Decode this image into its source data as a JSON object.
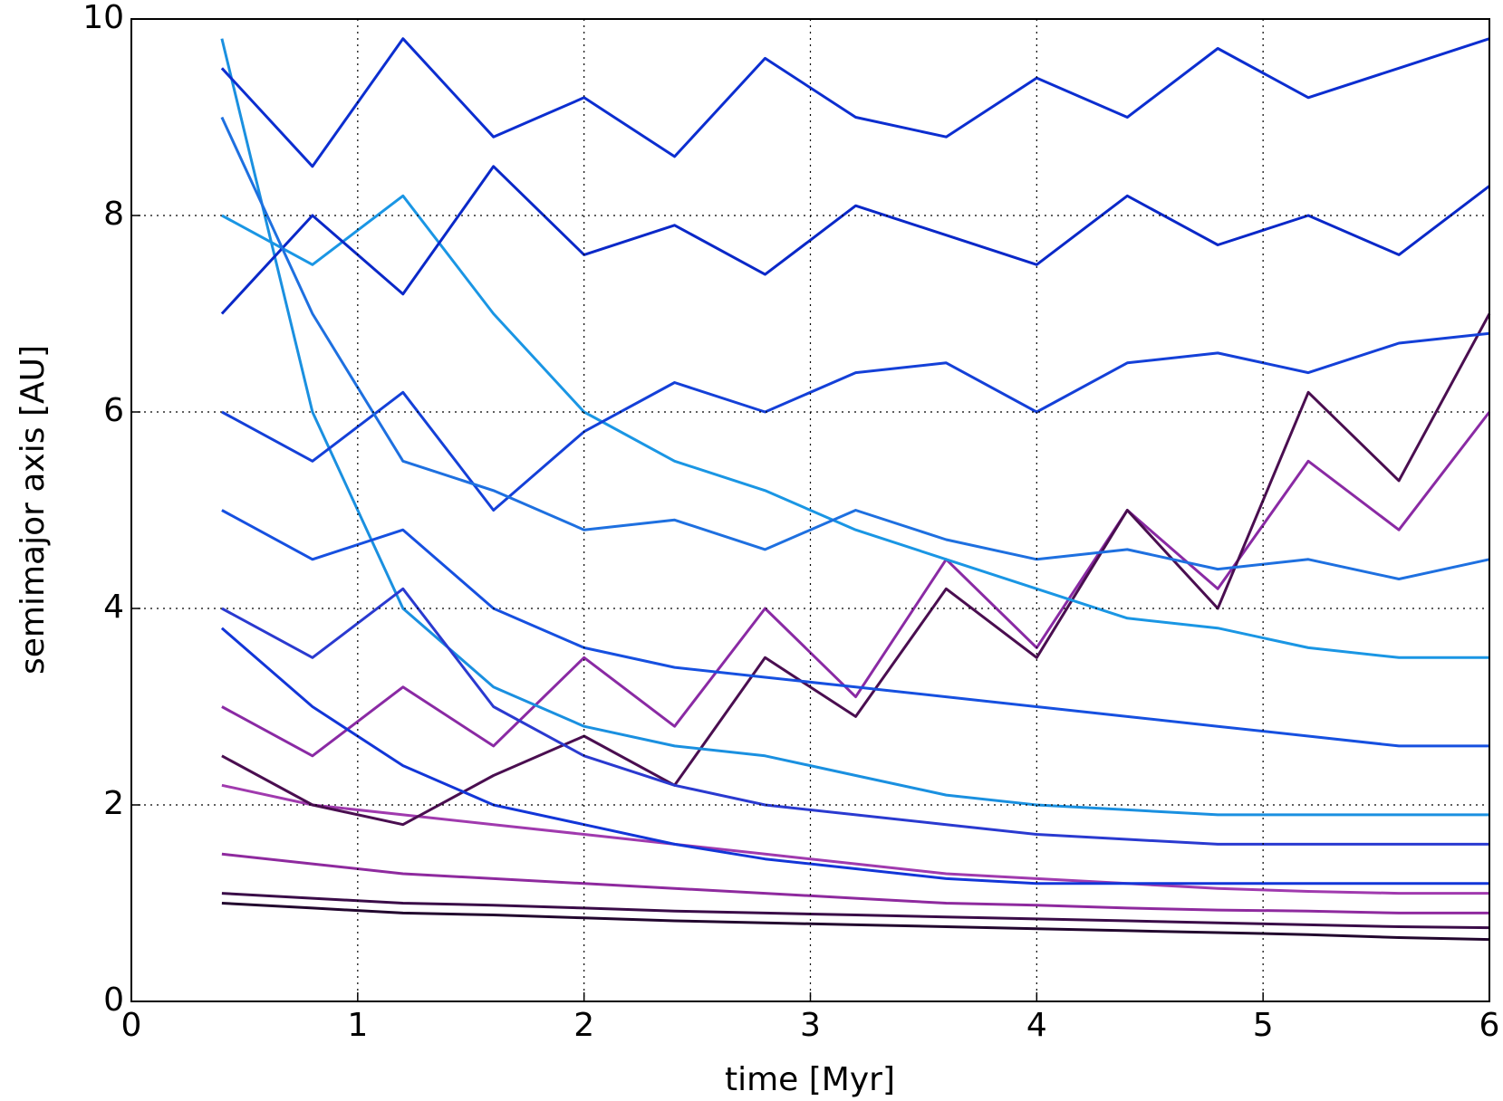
{
  "chart_data": {
    "type": "line",
    "xlabel": "time [Myr]",
    "ylabel": "semimajor axis [AU]",
    "x": [
      0.4,
      0.8,
      1.2,
      1.6,
      2.0,
      2.4,
      2.8,
      3.2,
      3.6,
      4.0,
      4.4,
      4.8,
      5.2,
      5.6,
      6.0
    ],
    "xlim": [
      0,
      6
    ],
    "ylim": [
      0,
      10
    ],
    "xticks": [
      0,
      1,
      2,
      3,
      4,
      5,
      6
    ],
    "yticks": [
      0,
      2,
      4,
      6,
      8,
      10
    ],
    "grid": true,
    "series": [
      {
        "color": "#22062e",
        "values": [
          1.0,
          0.95,
          0.9,
          0.88,
          0.85,
          0.82,
          0.8,
          0.78,
          0.76,
          0.74,
          0.72,
          0.7,
          0.68,
          0.65,
          0.63
        ]
      },
      {
        "color": "#3a0c48",
        "values": [
          1.1,
          1.05,
          1.0,
          0.98,
          0.95,
          0.92,
          0.9,
          0.88,
          0.86,
          0.84,
          0.82,
          0.8,
          0.78,
          0.76,
          0.75
        ]
      },
      {
        "color": "#8e2a9e",
        "values": [
          1.5,
          1.4,
          1.3,
          1.25,
          1.2,
          1.15,
          1.1,
          1.05,
          1.0,
          0.98,
          0.95,
          0.93,
          0.92,
          0.9,
          0.9
        ]
      },
      {
        "color": "#a03aae",
        "values": [
          2.2,
          2.0,
          1.9,
          1.8,
          1.7,
          1.6,
          1.5,
          1.4,
          1.3,
          1.25,
          1.2,
          1.15,
          1.12,
          1.1,
          1.1
        ]
      },
      {
        "color": "#8a2aa4",
        "values": [
          3.0,
          2.5,
          3.2,
          2.6,
          3.5,
          2.8,
          4.0,
          3.1,
          4.5,
          3.6,
          5.0,
          4.2,
          5.5,
          4.8,
          6.0
        ]
      },
      {
        "color": "#4a0e50",
        "values": [
          2.5,
          2.0,
          1.8,
          2.3,
          2.7,
          2.2,
          3.5,
          2.9,
          4.2,
          3.5,
          5.0,
          4.0,
          6.2,
          5.3,
          7.0
        ]
      },
      {
        "color": "#1236d8",
        "values": [
          3.8,
          3.0,
          2.4,
          2.0,
          1.8,
          1.6,
          1.45,
          1.35,
          1.25,
          1.2,
          1.2,
          1.2,
          1.2,
          1.2,
          1.2
        ]
      },
      {
        "color": "#1a90e0",
        "values": [
          9.8,
          6.0,
          4.0,
          3.2,
          2.8,
          2.6,
          2.5,
          2.3,
          2.1,
          2.0,
          1.95,
          1.9,
          1.9,
          1.9,
          1.9
        ]
      },
      {
        "color": "#1a96e4",
        "values": [
          8.0,
          7.5,
          8.2,
          7.0,
          6.0,
          5.5,
          5.2,
          4.8,
          4.5,
          4.2,
          3.9,
          3.8,
          3.6,
          3.5,
          3.5
        ]
      },
      {
        "color": "#0c2ed0",
        "values": [
          9.5,
          8.5,
          9.8,
          8.8,
          9.2,
          8.6,
          9.6,
          9.0,
          8.8,
          9.4,
          9.0,
          9.7,
          9.2,
          9.5,
          9.8
        ]
      },
      {
        "color": "#0a28c8",
        "values": [
          7.0,
          8.0,
          7.2,
          8.5,
          7.6,
          7.9,
          7.4,
          8.1,
          7.8,
          7.5,
          8.2,
          7.7,
          8.0,
          7.6,
          8.3
        ]
      },
      {
        "color": "#1440d8",
        "values": [
          6.0,
          5.5,
          6.2,
          5.0,
          5.8,
          6.3,
          6.0,
          6.4,
          6.5,
          6.0,
          6.5,
          6.6,
          6.4,
          6.7,
          6.8
        ]
      },
      {
        "color": "#1650e0",
        "values": [
          5.0,
          4.5,
          4.8,
          4.0,
          3.6,
          3.4,
          3.3,
          3.2,
          3.1,
          3.0,
          2.9,
          2.8,
          2.7,
          2.6,
          2.6
        ]
      },
      {
        "color": "#2a3ad0",
        "values": [
          4.0,
          3.5,
          4.2,
          3.0,
          2.5,
          2.2,
          2.0,
          1.9,
          1.8,
          1.7,
          1.65,
          1.6,
          1.6,
          1.6,
          1.6
        ]
      },
      {
        "color": "#1e70e0",
        "values": [
          9.0,
          7.0,
          5.5,
          5.2,
          4.8,
          4.9,
          4.6,
          5.0,
          4.7,
          4.5,
          4.6,
          4.4,
          4.5,
          4.3,
          4.5
        ]
      }
    ]
  }
}
